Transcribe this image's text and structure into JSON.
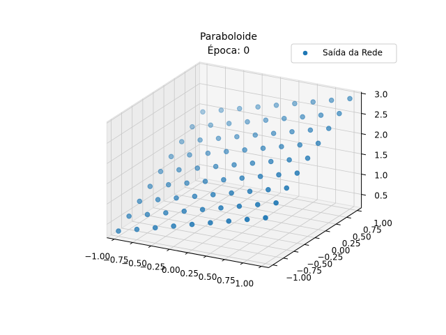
{
  "chart_data": {
    "type": "scatter3d",
    "title": "Paraboloide",
    "subtitle": "Época: 0",
    "series": [
      {
        "name": "Saída da Rede",
        "color": "#1f77b4",
        "x": [
          -1,
          -0.75,
          -0.5,
          -0.25,
          0,
          0.25,
          0.5,
          0.75,
          1,
          -1,
          -0.75,
          -0.5,
          -0.25,
          0,
          0.25,
          0.5,
          0.75,
          1,
          -1,
          -0.75,
          -0.5,
          -0.25,
          0,
          0.25,
          0.5,
          0.75,
          1,
          -1,
          -0.75,
          -0.5,
          -0.25,
          0,
          0.25,
          0.5,
          0.75,
          1,
          -1,
          -0.75,
          -0.5,
          -0.25,
          0,
          0.25,
          0.5,
          0.75,
          1,
          -1,
          -0.75,
          -0.5,
          -0.25,
          0,
          0.25,
          0.5,
          0.75,
          1,
          -1,
          -0.75,
          -0.5,
          -0.25,
          0,
          0.25,
          0.5,
          0.75,
          1,
          -1,
          -0.75,
          -0.5,
          -0.25,
          0,
          0.25,
          0.5,
          0.75,
          1,
          -1,
          -0.75,
          -0.5,
          -0.25,
          0,
          0.25,
          0.5,
          0.75,
          1
        ],
        "y": [
          -1,
          -1,
          -1,
          -1,
          -1,
          -1,
          -1,
          -1,
          -1,
          -0.75,
          -0.75,
          -0.75,
          -0.75,
          -0.75,
          -0.75,
          -0.75,
          -0.75,
          -0.75,
          -0.5,
          -0.5,
          -0.5,
          -0.5,
          -0.5,
          -0.5,
          -0.5,
          -0.5,
          -0.5,
          -0.25,
          -0.25,
          -0.25,
          -0.25,
          -0.25,
          -0.25,
          -0.25,
          -0.25,
          -0.25,
          0,
          0,
          0,
          0,
          0,
          0,
          0,
          0,
          0,
          0.25,
          0.25,
          0.25,
          0.25,
          0.25,
          0.25,
          0.25,
          0.25,
          0.25,
          0.5,
          0.5,
          0.5,
          0.5,
          0.5,
          0.5,
          0.5,
          0.5,
          0.5,
          0.75,
          0.75,
          0.75,
          0.75,
          0.75,
          0.75,
          0.75,
          0.75,
          0.75,
          1,
          1,
          1,
          1,
          1,
          1,
          1,
          1,
          1
        ],
        "z": [
          0.3,
          0.425,
          0.55,
          0.675,
          0.8,
          0.925,
          1.05,
          1.175,
          1.3,
          0.5,
          0.625,
          0.75,
          0.875,
          1.0,
          1.125,
          1.25,
          1.375,
          1.5,
          0.7,
          0.825,
          0.95,
          1.075,
          1.2,
          1.325,
          1.45,
          1.575,
          1.7,
          0.9,
          1.025,
          1.15,
          1.275,
          1.4,
          1.525,
          1.65,
          1.775,
          1.9,
          1.1,
          1.225,
          1.35,
          1.475,
          1.6,
          1.725,
          1.85,
          1.975,
          2.1,
          1.3,
          1.425,
          1.55,
          1.675,
          1.8,
          1.925,
          2.05,
          2.175,
          2.3,
          1.5,
          1.625,
          1.75,
          1.875,
          2.0,
          2.125,
          2.25,
          2.375,
          2.5,
          1.7,
          1.825,
          1.95,
          2.075,
          2.2,
          2.325,
          2.45,
          2.575,
          2.7,
          1.9,
          2.025,
          2.15,
          2.275,
          2.4,
          2.525,
          2.65,
          2.775,
          2.9
        ]
      }
    ],
    "xlim": [
      -1.1,
      1.1
    ],
    "ylim": [
      -1.1,
      1.1
    ],
    "zlim": [
      0.17,
      3.03
    ],
    "xticks": [
      {
        "value": -1,
        "label": "−1.00"
      },
      {
        "value": -0.75,
        "label": "−0.75"
      },
      {
        "value": -0.5,
        "label": "−0.50"
      },
      {
        "value": -0.25,
        "label": "−0.25"
      },
      {
        "value": 0,
        "label": "0.00"
      },
      0.25,
      {
        "value": 0.5,
        "label": "0.50"
      },
      0.75,
      {
        "value": 1,
        "label": "1.00"
      }
    ],
    "yticks": [
      {
        "value": -1,
        "label": "−1.00"
      },
      {
        "value": -0.75,
        "label": "−0.75"
      },
      {
        "value": -0.5,
        "label": "−0.50"
      },
      {
        "value": -0.25,
        "label": "−0.25"
      },
      {
        "value": 0,
        "label": "0.00"
      },
      0.25,
      {
        "value": 0.5,
        "label": "0.50"
      },
      0.75,
      {
        "value": 1,
        "label": "1.00"
      }
    ],
    "zticks": [
      0.5,
      {
        "value": 1,
        "label": "1.0"
      },
      1.5,
      {
        "value": 2,
        "label": "2.0"
      },
      2.5,
      {
        "value": 3,
        "label": "3.0"
      }
    ],
    "grid": true,
    "legend": "upper right"
  }
}
